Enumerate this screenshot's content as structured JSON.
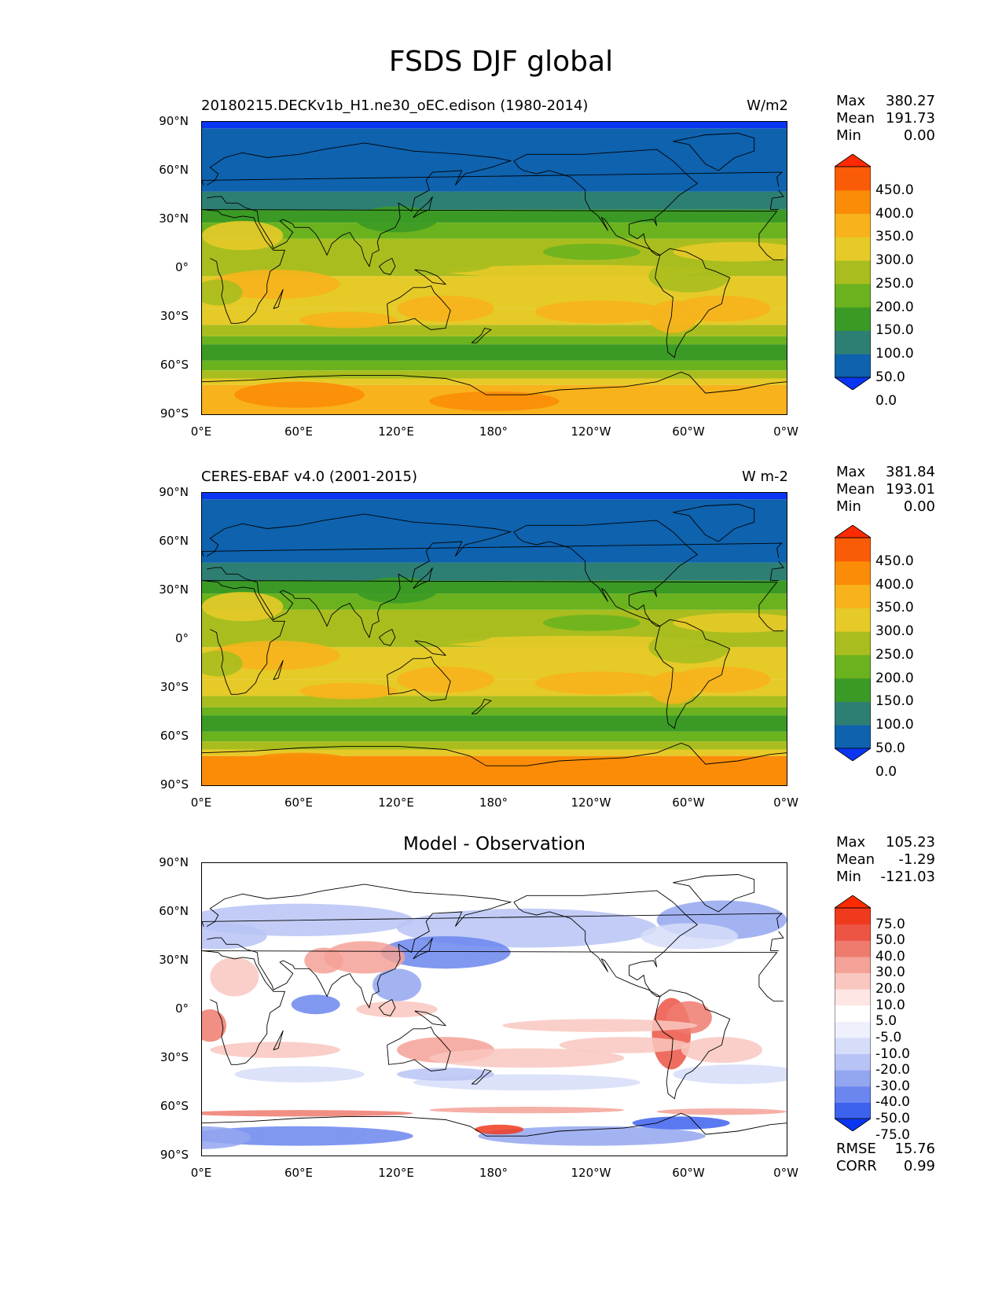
{
  "figure": {
    "title": "FSDS DJF global"
  },
  "lat_ticks": [
    "90°N",
    "60°N",
    "30°N",
    "0°",
    "30°S",
    "60°S",
    "90°S"
  ],
  "lon_ticks": [
    "0°E",
    "60°E",
    "120°E",
    "180°",
    "120°W",
    "60°W",
    "0°W"
  ],
  "panels": [
    {
      "case": "20180215.DECKv1b_H1.ne30_oEC.edison (1980-2014)",
      "units": "W/m2",
      "stats": {
        "max_label": "Max",
        "max": "380.27",
        "mean_label": "Mean",
        "mean": "191.73",
        "min_label": "Min",
        "min": "0.00"
      },
      "colorbar_labels": [
        "450.0",
        "400.0",
        "350.0",
        "300.0",
        "250.0",
        "200.0",
        "150.0",
        "100.0",
        "50.0",
        "0.0"
      ]
    },
    {
      "case": "CERES-EBAF v4.0 (2001-2015)",
      "units": "W m-2",
      "stats": {
        "max_label": "Max",
        "max": "381.84",
        "mean_label": "Mean",
        "mean": "193.01",
        "min_label": "Min",
        "min": "0.00"
      },
      "colorbar_labels": [
        "450.0",
        "400.0",
        "350.0",
        "300.0",
        "250.0",
        "200.0",
        "150.0",
        "100.0",
        "50.0",
        "0.0"
      ]
    },
    {
      "title": "Model - Observation",
      "stats": {
        "max_label": "Max",
        "max": "105.23",
        "mean_label": "Mean",
        "mean": "-1.29",
        "min_label": "Min",
        "min": "-121.03"
      },
      "colorbar_labels": [
        "75.0",
        "50.0",
        "40.0",
        "30.0",
        "20.0",
        "10.0",
        "5.0",
        "-5.0",
        "-10.0",
        "-20.0",
        "-30.0",
        "-40.0",
        "-50.0",
        "-75.0"
      ],
      "rmse_label": "RMSE",
      "rmse": "15.76",
      "corr_label": "CORR",
      "corr": "0.99"
    }
  ],
  "colors": {
    "field_scale": [
      "#0a35f2",
      "#0e62ae",
      "#2e7f73",
      "#3b9a25",
      "#6ab21e",
      "#a9be1e",
      "#e6ca28",
      "#f7b21c",
      "#fb8c08",
      "#fa5b07",
      "#ff2a00"
    ],
    "diff_scale": [
      "#0a35f2",
      "#3d62ee",
      "#6b86ee",
      "#93a6f0",
      "#b7c3f4",
      "#d6ddf8",
      "#eef1fc",
      "#ffffff",
      "#fde6e3",
      "#f9c7c0",
      "#f4a197",
      "#ef7b6e",
      "#ec5444",
      "#f03a1e",
      "#ff2a00"
    ],
    "coast": "#000000"
  }
}
